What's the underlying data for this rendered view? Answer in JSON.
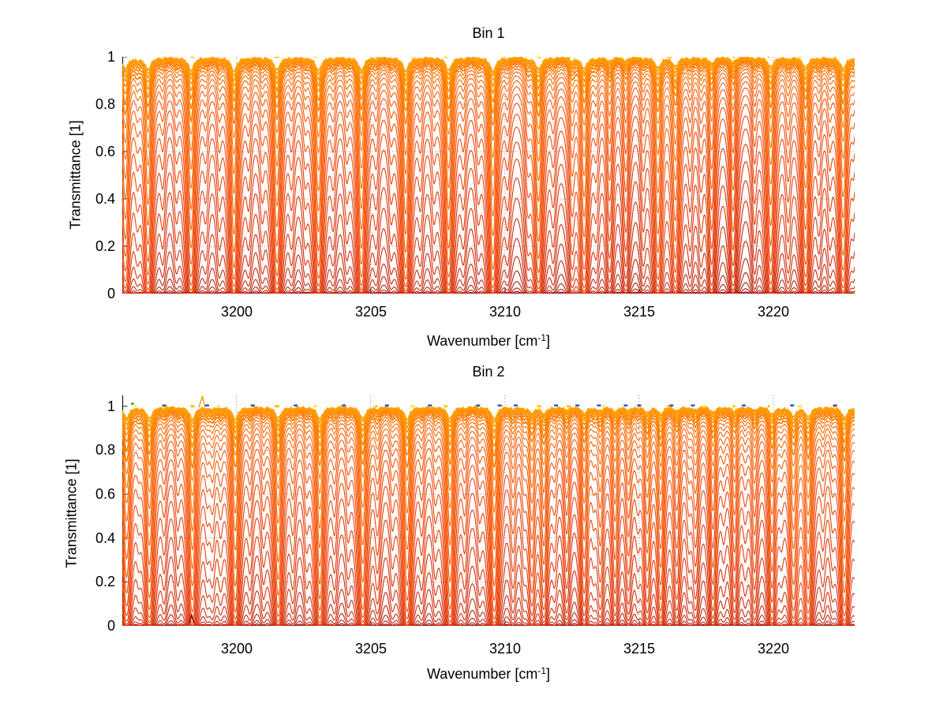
{
  "figure": {
    "background": "#ffffff",
    "grid_color": "#1a1a1a",
    "axis_color": "#000000"
  },
  "chart_data": [
    {
      "type": "line",
      "title": "Bin 1",
      "xlabel_prefix": "Wavenumber [cm",
      "xlabel_exponent": "-1",
      "xlabel_suffix": "]",
      "ylabel": "Transmittance [1]",
      "xlim": [
        3195.74,
        3223.03
      ],
      "ylim": [
        0,
        1
      ],
      "xticks": [
        3200,
        3205,
        3210,
        3215,
        3220
      ],
      "yticks": [
        0,
        0.2,
        0.4,
        0.6,
        0.8,
        1
      ],
      "xtick_labels": [
        "3200",
        "3205",
        "3210",
        "3215",
        "3220"
      ],
      "ytick_labels": [
        "0",
        "0.2",
        "0.4",
        "0.6",
        "0.8",
        "1"
      ],
      "grid": true,
      "legend": "none",
      "n_curves": 34,
      "factor_min": 0.018,
      "factor_max": 45,
      "continuum": 0.015,
      "colormap": [
        "#7d0a0a",
        "#990b00",
        "#b81700",
        "#d42600",
        "#e83800",
        "#f54c00",
        "#fd6000",
        "#ff7600",
        "#ff8d00",
        "#ff9e00"
      ],
      "lines": [
        [
          3195.85,
          2.8,
          0.13
        ],
        [
          3196.7,
          3.0,
          0.13
        ],
        [
          3198.3,
          3.2,
          0.13
        ],
        [
          3199.9,
          3.4,
          0.13
        ],
        [
          3201.5,
          3.1,
          0.13
        ],
        [
          3203.05,
          3.3,
          0.13
        ],
        [
          3204.65,
          3.2,
          0.13
        ],
        [
          3206.3,
          3.4,
          0.13
        ],
        [
          3207.9,
          3.2,
          0.13
        ],
        [
          3209.55,
          3.5,
          0.13
        ],
        [
          3211.25,
          2.9,
          0.13
        ],
        [
          3212.95,
          2.7,
          0.13
        ],
        [
          3215.7,
          2.6,
          0.13
        ],
        [
          3216.35,
          2.2,
          0.13
        ],
        [
          3219.9,
          2.4,
          0.13
        ],
        [
          3221.2,
          2.5,
          0.13
        ],
        [
          3222.6,
          2.8,
          0.13
        ],
        [
          3210.85,
          0.5,
          0.12
        ],
        [
          3212.5,
          0.8,
          0.12
        ],
        [
          3213.9,
          1.0,
          0.12
        ],
        [
          3214.5,
          0.9,
          0.12
        ],
        [
          3217.7,
          1.5,
          0.12
        ],
        [
          3218.5,
          1.2,
          0.12
        ],
        [
          3220.55,
          0.5,
          0.12
        ],
        [
          3196.3,
          0.5,
          0.12
        ],
        [
          3197.25,
          0.35,
          0.11
        ],
        [
          3197.75,
          0.3,
          0.11
        ],
        [
          3198.85,
          0.3,
          0.11
        ],
        [
          3199.35,
          0.35,
          0.11
        ],
        [
          3200.45,
          0.35,
          0.11
        ],
        [
          3200.95,
          0.3,
          0.11
        ],
        [
          3202.05,
          0.35,
          0.11
        ],
        [
          3202.55,
          0.3,
          0.11
        ],
        [
          3203.6,
          0.35,
          0.11
        ],
        [
          3204.1,
          0.3,
          0.11
        ],
        [
          3205.2,
          0.35,
          0.11
        ],
        [
          3205.75,
          0.3,
          0.11
        ],
        [
          3206.85,
          0.35,
          0.11
        ],
        [
          3207.35,
          0.3,
          0.11
        ],
        [
          3208.45,
          0.35,
          0.11
        ],
        [
          3209.0,
          0.3,
          0.11
        ],
        [
          3210.1,
          0.35,
          0.11
        ],
        [
          3211.8,
          0.35,
          0.11
        ],
        [
          3213.4,
          0.4,
          0.11
        ],
        [
          3215.15,
          0.4,
          0.11
        ],
        [
          3216.9,
          0.4,
          0.11
        ],
        [
          3217.3,
          0.4,
          0.11
        ],
        [
          3219.3,
          0.4,
          0.11
        ],
        [
          3221.7,
          0.4,
          0.11
        ],
        [
          3222.1,
          0.35,
          0.11
        ],
        [
          3223.0,
          0.4,
          0.11
        ]
      ],
      "artifacts": {
        "blue_dashes": [],
        "glints": true
      }
    },
    {
      "type": "line",
      "title": "Bin 2",
      "xlabel_prefix": "Wavenumber [cm",
      "xlabel_exponent": "-1",
      "xlabel_suffix": "]",
      "ylabel": "Transmittance [1]",
      "xlim": [
        3195.74,
        3223.03
      ],
      "ylim": [
        0,
        1.05
      ],
      "xticks": [
        3200,
        3205,
        3210,
        3215,
        3220
      ],
      "yticks": [
        0,
        0.2,
        0.4,
        0.6,
        0.8,
        1
      ],
      "xtick_labels": [
        "3200",
        "3205",
        "3210",
        "3215",
        "3220"
      ],
      "ytick_labels": [
        "0",
        "0.2",
        "0.4",
        "0.6",
        "0.8",
        "1"
      ],
      "grid": true,
      "legend": "none",
      "n_curves": 34,
      "factor_min": 0.018,
      "factor_max": 45,
      "continuum": 0.015,
      "colormap": [
        "#7d0a0a",
        "#990b00",
        "#b81700",
        "#d42600",
        "#e83800",
        "#f54c00",
        "#fd6000",
        "#ff7600",
        "#ff8d00",
        "#ff9e00"
      ],
      "lines": [
        [
          3195.9,
          2.9,
          0.13
        ],
        [
          3196.75,
          3.1,
          0.13
        ],
        [
          3198.35,
          3.3,
          0.13
        ],
        [
          3199.95,
          3.3,
          0.13
        ],
        [
          3201.55,
          3.0,
          0.13
        ],
        [
          3203.1,
          3.2,
          0.13
        ],
        [
          3204.7,
          3.1,
          0.13
        ],
        [
          3206.35,
          3.3,
          0.13
        ],
        [
          3207.95,
          3.1,
          0.13
        ],
        [
          3209.6,
          3.3,
          0.13
        ],
        [
          3220.75,
          2.4,
          0.13
        ],
        [
          3221.3,
          2.6,
          0.13
        ],
        [
          3222.65,
          2.9,
          0.13
        ],
        [
          3211.0,
          1.6,
          0.12
        ],
        [
          3211.45,
          1.8,
          0.12
        ],
        [
          3212.3,
          0.9,
          0.12
        ],
        [
          3212.95,
          1.7,
          0.12
        ],
        [
          3213.55,
          1.0,
          0.12
        ],
        [
          3214.1,
          1.3,
          0.12
        ],
        [
          3214.6,
          0.9,
          0.12
        ],
        [
          3215.3,
          1.5,
          0.12
        ],
        [
          3215.8,
          1.9,
          0.12
        ],
        [
          3216.4,
          1.1,
          0.12
        ],
        [
          3217.1,
          0.8,
          0.12
        ],
        [
          3217.75,
          1.5,
          0.12
        ],
        [
          3218.55,
          1.2,
          0.12
        ],
        [
          3219.3,
          0.9,
          0.12
        ],
        [
          3219.95,
          2.0,
          0.12
        ],
        [
          3210.3,
          0.6,
          0.12
        ],
        [
          3205.25,
          0.6,
          0.12
        ],
        [
          3199.1,
          0.5,
          0.12
        ],
        [
          3197.3,
          0.4,
          0.11
        ],
        [
          3197.8,
          0.35,
          0.11
        ],
        [
          3198.9,
          0.35,
          0.11
        ],
        [
          3199.4,
          0.35,
          0.11
        ],
        [
          3200.5,
          0.4,
          0.11
        ],
        [
          3201.0,
          0.35,
          0.11
        ],
        [
          3202.1,
          0.4,
          0.11
        ],
        [
          3202.6,
          0.35,
          0.11
        ],
        [
          3203.65,
          0.4,
          0.11
        ],
        [
          3204.15,
          0.3,
          0.11
        ],
        [
          3205.8,
          0.35,
          0.11
        ],
        [
          3206.9,
          0.4,
          0.11
        ],
        [
          3207.4,
          0.3,
          0.11
        ],
        [
          3208.5,
          0.4,
          0.11
        ],
        [
          3209.05,
          0.3,
          0.11
        ],
        [
          3210.7,
          0.4,
          0.11
        ],
        [
          3211.85,
          0.35,
          0.11
        ],
        [
          3216.85,
          0.35,
          0.11
        ],
        [
          3218.15,
          0.3,
          0.11
        ],
        [
          3220.3,
          0.35,
          0.11
        ],
        [
          3221.85,
          0.35,
          0.11
        ],
        [
          3222.2,
          0.3,
          0.11
        ],
        [
          3223.05,
          0.4,
          0.11
        ],
        [
          3196.35,
          0.3,
          0.11
        ],
        [
          3213.3,
          0.35,
          0.11
        ],
        [
          3214.95,
          0.3,
          0.11
        ],
        [
          3218.95,
          0.3,
          0.11
        ]
      ],
      "artifacts": {
        "blue_dashes": [
          3197.3,
          3198.9,
          3200.6,
          3202.2,
          3204.0,
          3205.6,
          3207.2,
          3209.0,
          3209.8,
          3210.4,
          3211.9,
          3212.7,
          3213.5,
          3214.5,
          3215.0,
          3216.2,
          3217.0,
          3218.9,
          3220.7,
          3222.3
        ],
        "blue_dash_color": "#2b4fd0",
        "spike": {
          "x": 3198.72,
          "top": 1.043,
          "color": "#f29500",
          "tip_color": "#c8d400"
        },
        "green_dash": {
          "x": 3196.12,
          "y": 1.012,
          "color": "#4f9a1f"
        },
        "bottom_spike": {
          "x": 3198.32,
          "top": 0.05,
          "color": "#8b0000"
        },
        "glints": true
      }
    }
  ]
}
